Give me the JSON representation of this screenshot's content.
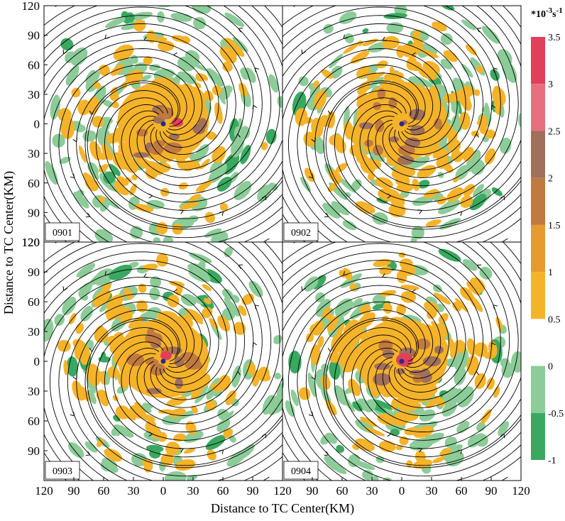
{
  "chart_data": {
    "type": "heatmap",
    "description_units": "filled contours with streamlines, 2x2 panels",
    "xlabel": "Distance to TC Center(KM)",
    "ylabel": "Distance to TC Center(KM)",
    "x_ticks": [
      "120",
      "90",
      "60",
      "30",
      "0",
      "30",
      "60",
      "90",
      "120"
    ],
    "y_ticks": [
      "120",
      "90",
      "60",
      "30",
      "0",
      "30",
      "60",
      "90",
      "120"
    ],
    "xlim": [
      -120,
      120
    ],
    "ylim": [
      -120,
      120
    ],
    "colorbar": {
      "unit_base": "*10",
      "unit_exp1": "-3",
      "unit_mid": "s",
      "unit_exp2": "-1",
      "tick_labels": [
        "3.5",
        "3",
        "2.5",
        "2",
        "1.5",
        "1",
        "0.5",
        "0",
        "-0.5",
        "-1"
      ],
      "levels": [
        3.5,
        3,
        2.5,
        2,
        1.5,
        1,
        0.5,
        0,
        -0.5,
        -1
      ],
      "band_colors": [
        "#e0405a",
        "#e8707e",
        "#a0705a",
        "#c07a40",
        "#e89a30",
        "#f5b32a",
        "#ffffff",
        "#8ccc98",
        "#3aa860"
      ],
      "colors": {
        "pos_low": "#f5b32a",
        "pos_mid": "#c07a40",
        "pos_high": "#a0705a",
        "peak": "#e0405a",
        "neg": "#8ccc98",
        "neg_strong": "#3aa860",
        "streamline": "#000000",
        "center_marker": "#2a2a8a"
      }
    },
    "panels": [
      {
        "label": "0901",
        "center": [
          0,
          0
        ],
        "max_value": 3.0
      },
      {
        "label": "0902",
        "center": [
          0,
          0
        ],
        "max_value": 2.5
      },
      {
        "label": "0903",
        "center": [
          0,
          0
        ],
        "max_value": 3.0
      },
      {
        "label": "0904",
        "center": [
          0,
          0
        ],
        "max_value": 3.5
      }
    ]
  }
}
